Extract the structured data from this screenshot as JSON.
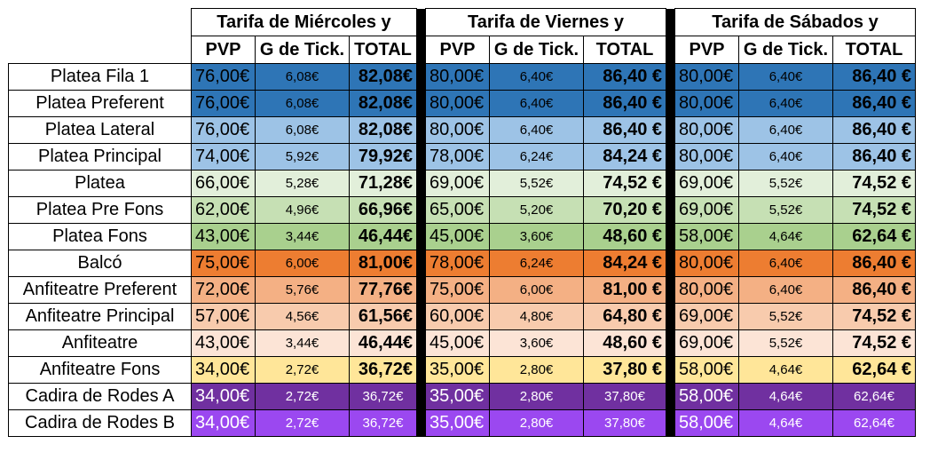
{
  "groups": [
    {
      "title": "Tarifa de  Miércoles y"
    },
    {
      "title": "Tarifa de  Viernes y"
    },
    {
      "title": "Tarifa de  Sábados y"
    }
  ],
  "subheaders": [
    "PVP",
    "G de Tick.",
    "TOTAL"
  ],
  "rows": [
    {
      "zone": "Platea Fila 1",
      "bg": "#2e75b6",
      "fg": "#000000",
      "light_total": false,
      "w": [
        "76,00€",
        "6,08€",
        "82,08€"
      ],
      "v": [
        "80,00€",
        "6,40€",
        "86,40 €"
      ],
      "s": [
        "80,00€",
        "6,40€",
        "86,40 €"
      ]
    },
    {
      "zone": "Platea Preferent",
      "bg": "#2e75b6",
      "fg": "#000000",
      "light_total": false,
      "w": [
        "76,00€",
        "6,08€",
        "82,08€"
      ],
      "v": [
        "80,00€",
        "6,40€",
        "86,40 €"
      ],
      "s": [
        "80,00€",
        "6,40€",
        "86,40 €"
      ]
    },
    {
      "zone": "Platea Lateral",
      "bg": "#9dc3e6",
      "fg": "#000000",
      "light_total": false,
      "w": [
        "76,00€",
        "6,08€",
        "82,08€"
      ],
      "v": [
        "80,00€",
        "6,40€",
        "86,40 €"
      ],
      "s": [
        "80,00€",
        "6,40€",
        "86,40 €"
      ]
    },
    {
      "zone": "Platea Principal",
      "bg": "#9dc3e6",
      "fg": "#000000",
      "light_total": false,
      "w": [
        "74,00€",
        "5,92€",
        "79,92€"
      ],
      "v": [
        "78,00€",
        "6,24€",
        "84,24 €"
      ],
      "s": [
        "80,00€",
        "6,40€",
        "86,40 €"
      ]
    },
    {
      "zone": "Platea",
      "bg": "#e2efda",
      "fg": "#000000",
      "light_total": false,
      "w": [
        "66,00€",
        "5,28€",
        "71,28€"
      ],
      "v": [
        "69,00€",
        "5,52€",
        "74,52 €"
      ],
      "s": [
        "69,00€",
        "5,52€",
        "74,52 €"
      ]
    },
    {
      "zone": "Platea Pre Fons",
      "bg": "#c6e0b4",
      "fg": "#000000",
      "light_total": false,
      "w": [
        "62,00€",
        "4,96€",
        "66,96€"
      ],
      "v": [
        "65,00€",
        "5,20€",
        "70,20 €"
      ],
      "s": [
        "69,00€",
        "5,52€",
        "74,52 €"
      ]
    },
    {
      "zone": "Platea Fons",
      "bg": "#a9d08e",
      "fg": "#000000",
      "light_total": false,
      "w": [
        "43,00€",
        "3,44€",
        "46,44€"
      ],
      "v": [
        "45,00€",
        "3,60€",
        "48,60 €"
      ],
      "s": [
        "58,00€",
        "4,64€",
        "62,64 €"
      ]
    },
    {
      "zone": "Balcó",
      "bg": "#ed7d31",
      "fg": "#000000",
      "light_total": false,
      "w": [
        "75,00€",
        "6,00€",
        "81,00€"
      ],
      "v": [
        "78,00€",
        "6,24€",
        "84,24 €"
      ],
      "s": [
        "80,00€",
        "6,40€",
        "86,40 €"
      ]
    },
    {
      "zone": "Anfiteatre Preferent",
      "bg": "#f4b084",
      "fg": "#000000",
      "light_total": false,
      "w": [
        "72,00€",
        "5,76€",
        "77,76€"
      ],
      "v": [
        "75,00€",
        "6,00€",
        "81,00 €"
      ],
      "s": [
        "80,00€",
        "6,40€",
        "86,40 €"
      ]
    },
    {
      "zone": "Anfiteatre Principal",
      "bg": "#f8cbad",
      "fg": "#000000",
      "light_total": false,
      "w": [
        "57,00€",
        "4,56€",
        "61,56€"
      ],
      "v": [
        "60,00€",
        "4,80€",
        "64,80 €"
      ],
      "s": [
        "69,00€",
        "5,52€",
        "74,52 €"
      ]
    },
    {
      "zone": "Anfiteatre",
      "bg": "#fce4d6",
      "fg": "#000000",
      "light_total": false,
      "w": [
        "43,00€",
        "3,44€",
        "46,44€"
      ],
      "v": [
        "45,00€",
        "3,60€",
        "48,60 €"
      ],
      "s": [
        "69,00€",
        "5,52€",
        "74,52 €"
      ]
    },
    {
      "zone": "Anfiteatre Fons",
      "bg": "#ffe699",
      "fg": "#000000",
      "light_total": false,
      "w": [
        "34,00€",
        "2,72€",
        "36,72€"
      ],
      "v": [
        "35,00€",
        "2,80€",
        "37,80 €"
      ],
      "s": [
        "58,00€",
        "4,64€",
        "62,64 €"
      ]
    },
    {
      "zone": "Cadira de Rodes A",
      "bg": "#7030a0",
      "fg": "#ffffff",
      "light_total": true,
      "w": [
        "34,00€",
        "2,72€",
        "36,72€"
      ],
      "v": [
        "35,00€",
        "2,80€",
        "37,80€"
      ],
      "s": [
        "58,00€",
        "4,64€",
        "62,64€"
      ]
    },
    {
      "zone": "Cadira de Rodes B",
      "bg": "#9b48f0",
      "fg": "#ffffff",
      "light_total": true,
      "w": [
        "34,00€",
        "2,72€",
        "36,72€"
      ],
      "v": [
        "35,00€",
        "2,80€",
        "37,80€"
      ],
      "s": [
        "58,00€",
        "4,64€",
        "62,64€"
      ]
    }
  ]
}
